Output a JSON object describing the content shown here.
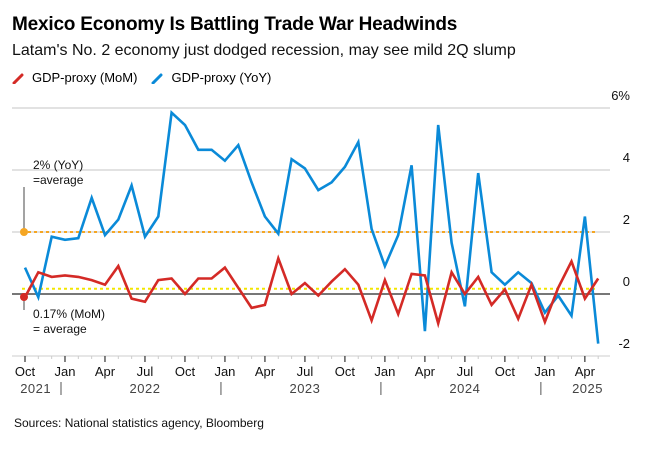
{
  "header": {
    "title": "Mexico Economy Is Battling Trade War Headwinds",
    "subtitle": "Latam's No. 2 economy just dodged recession, may see mild 2Q slump"
  },
  "legend": [
    {
      "label": "GDP-proxy (MoM)",
      "color": "#d42a26",
      "icon": "red-line-swatch-icon"
    },
    {
      "label": "GDP-proxy (YoY)",
      "color": "#0a8ad8",
      "icon": "blue-line-swatch-icon"
    }
  ],
  "footer": {
    "source": "Sources: National statistics agency, Bloomberg"
  },
  "chart_data": {
    "type": "line",
    "title": "Mexico Economy Is Battling Trade War Headwinds",
    "subtitle": "Latam's No. 2 economy just dodged recession, may see mild 2Q slump",
    "xlabel": "",
    "ylabel": "",
    "ylim": [
      -2,
      6
    ],
    "y_ticks": [
      6,
      4,
      2,
      0,
      -2
    ],
    "y_tick_labels": [
      "6%",
      "4",
      "2",
      "0",
      "-2"
    ],
    "y_axis_position": "right",
    "grid": true,
    "legend_position": "top-left",
    "x": [
      "2021-10",
      "2021-11",
      "2021-12",
      "2022-01",
      "2022-02",
      "2022-03",
      "2022-04",
      "2022-05",
      "2022-06",
      "2022-07",
      "2022-08",
      "2022-09",
      "2022-10",
      "2022-11",
      "2022-12",
      "2023-01",
      "2023-02",
      "2023-03",
      "2023-04",
      "2023-05",
      "2023-06",
      "2023-07",
      "2023-08",
      "2023-09",
      "2023-10",
      "2023-11",
      "2023-12",
      "2024-01",
      "2024-02",
      "2024-03",
      "2024-04",
      "2024-05",
      "2024-06",
      "2024-07",
      "2024-08",
      "2024-09",
      "2024-10",
      "2024-11",
      "2024-12",
      "2025-01",
      "2025-02",
      "2025-03",
      "2025-04",
      "2025-05"
    ],
    "x_tick_labels": [
      {
        "month_index": 0,
        "label": "Oct"
      },
      {
        "month_index": 3,
        "label": "Jan"
      },
      {
        "month_index": 6,
        "label": "Apr"
      },
      {
        "month_index": 9,
        "label": "Jul"
      },
      {
        "month_index": 12,
        "label": "Oct"
      },
      {
        "month_index": 15,
        "label": "Jan"
      },
      {
        "month_index": 18,
        "label": "Apr"
      },
      {
        "month_index": 21,
        "label": "Jul"
      },
      {
        "month_index": 24,
        "label": "Oct"
      },
      {
        "month_index": 27,
        "label": "Jan"
      },
      {
        "month_index": 30,
        "label": "Apr"
      },
      {
        "month_index": 33,
        "label": "Jul"
      },
      {
        "month_index": 36,
        "label": "Oct"
      },
      {
        "month_index": 39,
        "label": "Jan"
      },
      {
        "month_index": 42,
        "label": "Apr"
      }
    ],
    "year_labels": [
      {
        "label": "2021",
        "center_index": 0.8
      },
      {
        "label": "2022",
        "center_index": 9
      },
      {
        "label": "2023",
        "center_index": 21
      },
      {
        "label": "2024",
        "center_index": 33
      },
      {
        "label": "2025",
        "center_index": 42.2
      }
    ],
    "year_separators": [
      2.7,
      14.7,
      26.7,
      38.7
    ],
    "series": [
      {
        "name": "GDP-proxy (MoM)",
        "color": "#d42a26",
        "values": [
          -0.1,
          0.7,
          0.55,
          0.6,
          0.55,
          0.45,
          0.3,
          0.9,
          -0.15,
          -0.25,
          0.45,
          0.5,
          0.0,
          0.5,
          0.5,
          0.85,
          0.2,
          -0.45,
          -0.35,
          1.15,
          0.0,
          0.35,
          -0.05,
          0.4,
          0.8,
          0.3,
          -0.85,
          0.45,
          -0.65,
          0.65,
          0.6,
          -0.95,
          0.7,
          0.0,
          0.55,
          -0.35,
          0.15,
          -0.8,
          0.3,
          -0.9,
          0.2,
          1.05,
          -0.15,
          0.5
        ]
      },
      {
        "name": "GDP-proxy (YoY)",
        "color": "#0a8ad8",
        "values": [
          0.85,
          -0.1,
          1.85,
          1.75,
          1.8,
          3.1,
          1.9,
          2.4,
          3.5,
          1.85,
          2.5,
          5.85,
          5.45,
          4.65,
          4.65,
          4.3,
          4.8,
          3.6,
          2.5,
          1.95,
          4.35,
          4.05,
          3.35,
          3.6,
          4.1,
          4.9,
          2.1,
          0.9,
          1.9,
          4.15,
          -1.2,
          5.45,
          1.65,
          -0.4,
          3.9,
          0.7,
          0.3,
          0.7,
          0.35,
          -0.6,
          -0.05,
          -0.7,
          2.5,
          -1.6
        ]
      }
    ],
    "reference_lines": [
      {
        "name": "YoY average",
        "value": 2.0,
        "color": "#f5a623",
        "style": "dotted",
        "label_line1": "2% (YoY)",
        "label_line2": "=average"
      },
      {
        "name": "MoM average",
        "value": 0.17,
        "color": "#f2e600",
        "style": "dotted",
        "label_line1": "0.17% (MoM)",
        "label_line2": "= average"
      }
    ]
  }
}
